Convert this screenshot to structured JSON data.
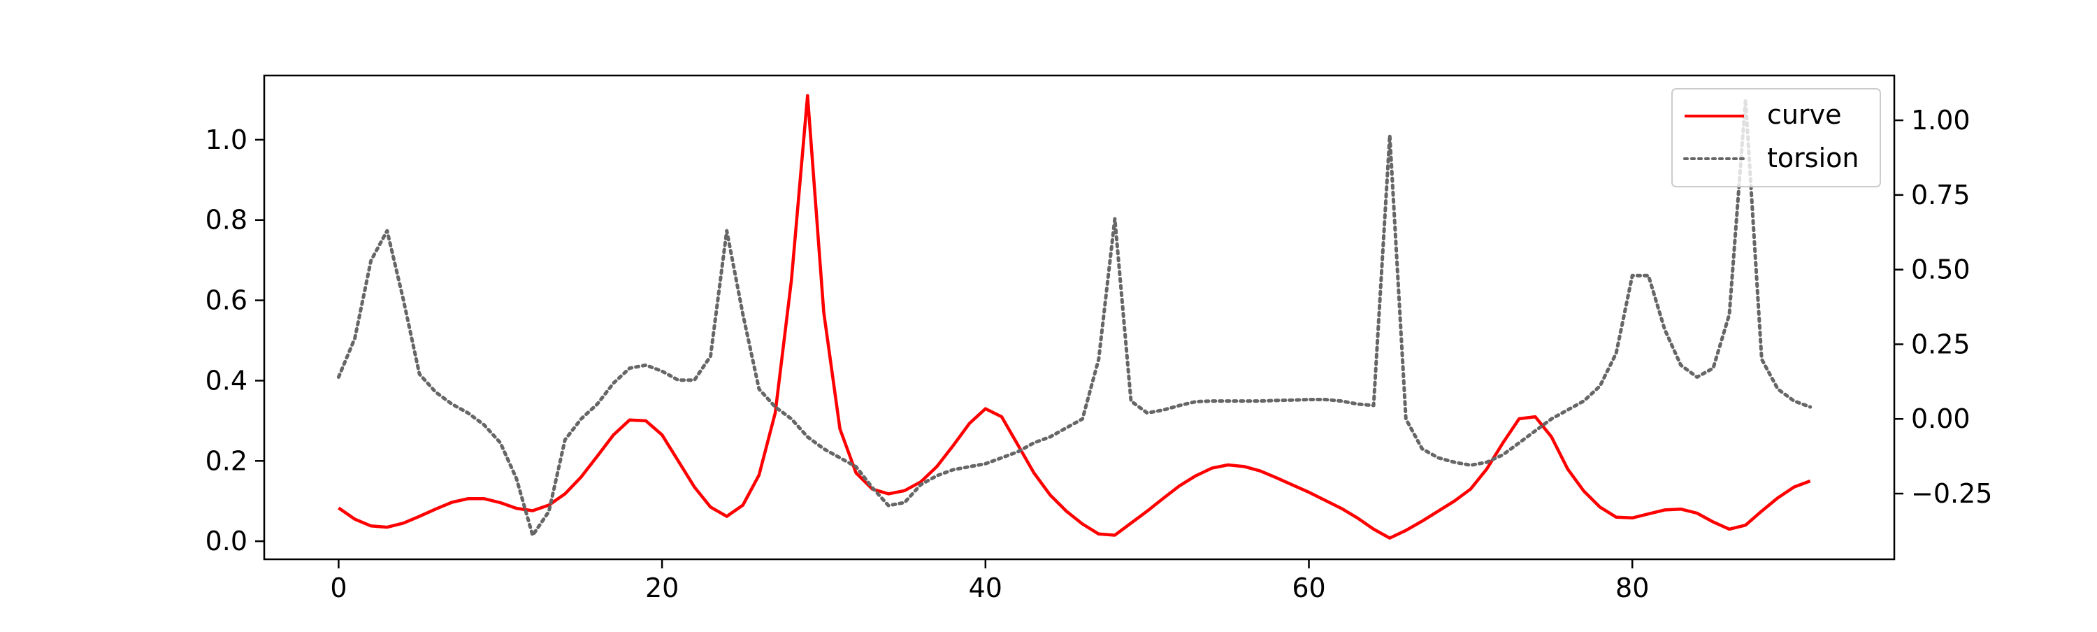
{
  "chart_data": {
    "type": "line",
    "title": "",
    "xlabel": "",
    "ylabel_left": "",
    "ylabel_right": "",
    "xlim": [
      -4.6,
      96.2
    ],
    "ylim_left": [
      -0.045,
      1.16
    ],
    "ylim_right": [
      -0.47,
      1.15
    ],
    "x_ticks": [
      0,
      20,
      40,
      60,
      80
    ],
    "x_tick_labels": [
      "0",
      "20",
      "40",
      "60",
      "80"
    ],
    "y_left_ticks": [
      0.0,
      0.2,
      0.4,
      0.6,
      0.8,
      1.0
    ],
    "y_left_tick_labels": [
      "0.0",
      "0.2",
      "0.4",
      "0.6",
      "0.8",
      "1.0"
    ],
    "y_right_ticks": [
      -0.25,
      0.0,
      0.25,
      0.5,
      0.75,
      1.0
    ],
    "y_right_tick_labels": [
      "−0.25",
      "0.00",
      "0.25",
      "0.50",
      "0.75",
      "1.00"
    ],
    "grid": false,
    "legend_position": "upper right",
    "legend": [
      {
        "label": "curve",
        "color": "#ff0000",
        "style": "solid"
      },
      {
        "label": "torsion",
        "color": "#666666",
        "style": "dotted"
      }
    ],
    "series": [
      {
        "name": "curve",
        "axis": "left",
        "color": "#ff0000",
        "style": "solid",
        "x": [
          0,
          1,
          2,
          3,
          4,
          5,
          6,
          7,
          8,
          9,
          10,
          11,
          12,
          13,
          14,
          15,
          16,
          17,
          18,
          19,
          20,
          21,
          22,
          23,
          24,
          25,
          26,
          27,
          28,
          29,
          30,
          31,
          32,
          33,
          34,
          35,
          36,
          37,
          38,
          39,
          40,
          41,
          42,
          43,
          44,
          45,
          46,
          47,
          48,
          49,
          50,
          51,
          52,
          53,
          54,
          55,
          56,
          57,
          58,
          59,
          60,
          61,
          62,
          63,
          64,
          65,
          66,
          67,
          68,
          69,
          70,
          71,
          72,
          73,
          74,
          75,
          76,
          77,
          78,
          79,
          80,
          81,
          82,
          83,
          84,
          85,
          86,
          87,
          88,
          89,
          90,
          91
        ],
        "y": [
          0.083,
          0.055,
          0.038,
          0.035,
          0.045,
          0.062,
          0.08,
          0.097,
          0.106,
          0.106,
          0.096,
          0.082,
          0.076,
          0.09,
          0.118,
          0.16,
          0.212,
          0.265,
          0.302,
          0.3,
          0.265,
          0.2,
          0.135,
          0.085,
          0.062,
          0.09,
          0.165,
          0.32,
          0.65,
          1.11,
          0.57,
          0.28,
          0.17,
          0.13,
          0.118,
          0.126,
          0.148,
          0.186,
          0.238,
          0.293,
          0.33,
          0.31,
          0.24,
          0.17,
          0.115,
          0.075,
          0.043,
          0.018,
          0.015,
          0.045,
          0.075,
          0.107,
          0.138,
          0.163,
          0.182,
          0.19,
          0.186,
          0.175,
          0.158,
          0.14,
          0.122,
          0.102,
          0.082,
          0.058,
          0.03,
          0.008,
          0.027,
          0.05,
          0.075,
          0.1,
          0.13,
          0.18,
          0.245,
          0.305,
          0.31,
          0.26,
          0.18,
          0.125,
          0.085,
          0.06,
          0.058,
          0.068,
          0.078,
          0.08,
          0.07,
          0.048,
          0.03,
          0.04,
          0.075,
          0.108,
          0.135,
          0.15
        ]
      },
      {
        "name": "torsion",
        "axis": "right",
        "color": "#666666",
        "style": "dotted",
        "x": [
          0,
          1,
          2,
          3,
          4,
          5,
          6,
          7,
          8,
          9,
          10,
          11,
          12,
          13,
          14,
          15,
          16,
          17,
          18,
          19,
          20,
          21,
          22,
          23,
          24,
          25,
          26,
          27,
          28,
          29,
          30,
          31,
          32,
          33,
          34,
          35,
          36,
          37,
          38,
          39,
          40,
          41,
          42,
          43,
          44,
          45,
          46,
          47,
          48,
          49,
          50,
          51,
          52,
          53,
          54,
          55,
          56,
          57,
          58,
          59,
          60,
          61,
          62,
          63,
          64,
          65,
          66,
          67,
          68,
          69,
          70,
          71,
          72,
          73,
          74,
          75,
          76,
          77,
          78,
          79,
          80,
          81,
          82,
          83,
          84,
          85,
          86,
          87,
          88,
          89,
          90,
          91
        ],
        "y": [
          0.14,
          0.27,
          0.53,
          0.63,
          0.4,
          0.15,
          0.09,
          0.05,
          0.02,
          -0.02,
          -0.08,
          -0.2,
          -0.39,
          -0.31,
          -0.07,
          0.0,
          0.05,
          0.12,
          0.17,
          0.18,
          0.16,
          0.13,
          0.13,
          0.21,
          0.63,
          0.35,
          0.1,
          0.04,
          0.0,
          -0.06,
          -0.1,
          -0.13,
          -0.16,
          -0.23,
          -0.29,
          -0.28,
          -0.22,
          -0.19,
          -0.17,
          -0.16,
          -0.15,
          -0.13,
          -0.11,
          -0.08,
          -0.06,
          -0.03,
          0.0,
          0.2,
          0.67,
          0.06,
          0.02,
          0.03,
          0.045,
          0.058,
          0.06,
          0.06,
          0.06,
          0.06,
          0.062,
          0.063,
          0.065,
          0.065,
          0.06,
          0.05,
          0.045,
          0.95,
          0.0,
          -0.1,
          -0.13,
          -0.145,
          -0.155,
          -0.145,
          -0.12,
          -0.08,
          -0.04,
          0.0,
          0.03,
          0.06,
          0.11,
          0.22,
          0.48,
          0.48,
          0.3,
          0.18,
          0.14,
          0.17,
          0.35,
          1.07,
          0.2,
          0.1,
          0.06,
          0.04
        ]
      }
    ]
  }
}
